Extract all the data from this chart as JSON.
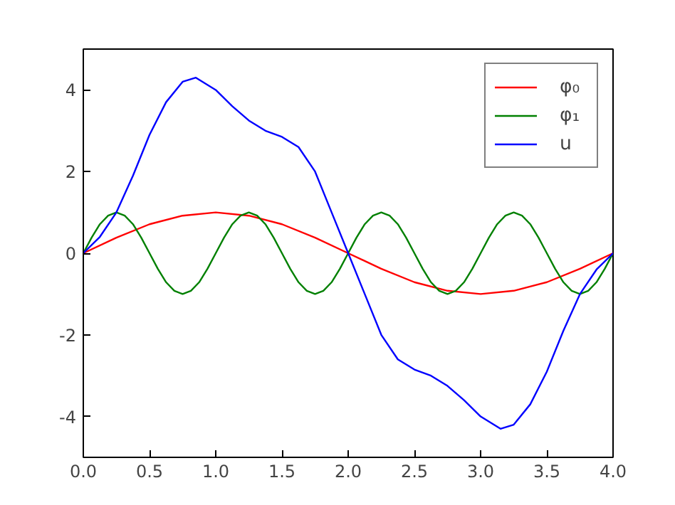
{
  "chart_data": {
    "type": "line",
    "xlim": [
      0.0,
      4.0
    ],
    "ylim": [
      -5,
      5
    ],
    "xticks": [
      {
        "value": 0,
        "label": "0.0"
      },
      {
        "value": 0.5,
        "label": "0.5"
      },
      {
        "value": 1,
        "label": "1.0"
      },
      {
        "value": 1.5,
        "label": "1.5"
      },
      {
        "value": 2,
        "label": "2.0"
      },
      {
        "value": 2.5,
        "label": "2.5"
      },
      {
        "value": 3,
        "label": "3.0"
      },
      {
        "value": 3.5,
        "label": "3.5"
      },
      {
        "value": 4,
        "label": "4.0"
      }
    ],
    "yticks": [
      -4,
      -2,
      0,
      2,
      4
    ],
    "grid": false,
    "legend": "top right",
    "marker": "none",
    "line_style": "solid",
    "series": [
      {
        "name": "φ₀",
        "color": "#ff0000",
        "x": [
          0,
          0.25,
          0.5,
          0.75,
          1,
          1.25,
          1.5,
          1.75,
          2,
          2.25,
          2.5,
          2.75,
          3,
          3.25,
          3.5,
          3.75,
          4
        ],
        "values": [
          0,
          0.38,
          0.71,
          0.92,
          1,
          0.92,
          0.71,
          0.38,
          0,
          -0.38,
          -0.71,
          -0.92,
          -1,
          -0.92,
          -0.71,
          -0.38,
          0
        ]
      },
      {
        "name": "φ₁",
        "color": "#008000",
        "x": [
          0,
          0.0625,
          0.125,
          0.1875,
          0.25,
          0.3125,
          0.375,
          0.4375,
          0.5,
          0.5625,
          0.625,
          0.6875,
          0.75,
          0.8125,
          0.875,
          0.9375,
          1,
          1.0625,
          1.125,
          1.1875,
          1.25,
          1.3125,
          1.375,
          1.4375,
          1.5,
          1.5625,
          1.625,
          1.6875,
          1.75,
          1.8125,
          1.875,
          1.9375,
          2,
          2.0625,
          2.125,
          2.1875,
          2.25,
          2.3125,
          2.375,
          2.4375,
          2.5,
          2.5625,
          2.625,
          2.6875,
          2.75,
          2.8125,
          2.875,
          2.9375,
          3,
          3.0625,
          3.125,
          3.1875,
          3.25,
          3.3125,
          3.375,
          3.4375,
          3.5,
          3.5625,
          3.625,
          3.6875,
          3.75,
          3.8125,
          3.875,
          3.9375,
          4
        ],
        "values": [
          0,
          0.38,
          0.71,
          0.92,
          1,
          0.92,
          0.71,
          0.38,
          0,
          -0.38,
          -0.71,
          -0.92,
          -1,
          -0.92,
          -0.71,
          -0.38,
          0,
          0.38,
          0.71,
          0.92,
          1,
          0.92,
          0.71,
          0.38,
          0,
          -0.38,
          -0.71,
          -0.92,
          -1,
          -0.92,
          -0.71,
          -0.38,
          0,
          0.38,
          0.71,
          0.92,
          1,
          0.92,
          0.71,
          0.38,
          0,
          -0.38,
          -0.71,
          -0.92,
          -1,
          -0.92,
          -0.71,
          -0.38,
          0,
          0.38,
          0.71,
          0.92,
          1,
          0.92,
          0.71,
          0.38,
          0,
          -0.38,
          -0.71,
          -0.92,
          -1,
          -0.92,
          -0.71,
          -0.38,
          0
        ]
      },
      {
        "name": "u",
        "color": "#0000ff",
        "x": [
          0,
          0.125,
          0.25,
          0.375,
          0.5,
          0.625,
          0.75,
          0.85,
          1,
          1.125,
          1.25,
          1.375,
          1.5,
          1.625,
          1.75,
          1.875,
          2,
          2.125,
          2.25,
          2.375,
          2.5,
          2.625,
          2.75,
          2.875,
          3,
          3.15,
          3.25,
          3.375,
          3.5,
          3.625,
          3.75,
          3.875,
          4
        ],
        "values": [
          0,
          0.4,
          1.0,
          1.9,
          2.9,
          3.7,
          4.2,
          4.3,
          4.0,
          3.6,
          3.25,
          3.0,
          2.85,
          2.6,
          2.0,
          1.0,
          0,
          -1.0,
          -2.0,
          -2.6,
          -2.85,
          -3.0,
          -3.25,
          -3.6,
          -4.0,
          -4.3,
          -4.2,
          -3.7,
          -2.9,
          -1.9,
          -1.0,
          -0.4,
          0
        ]
      }
    ]
  }
}
